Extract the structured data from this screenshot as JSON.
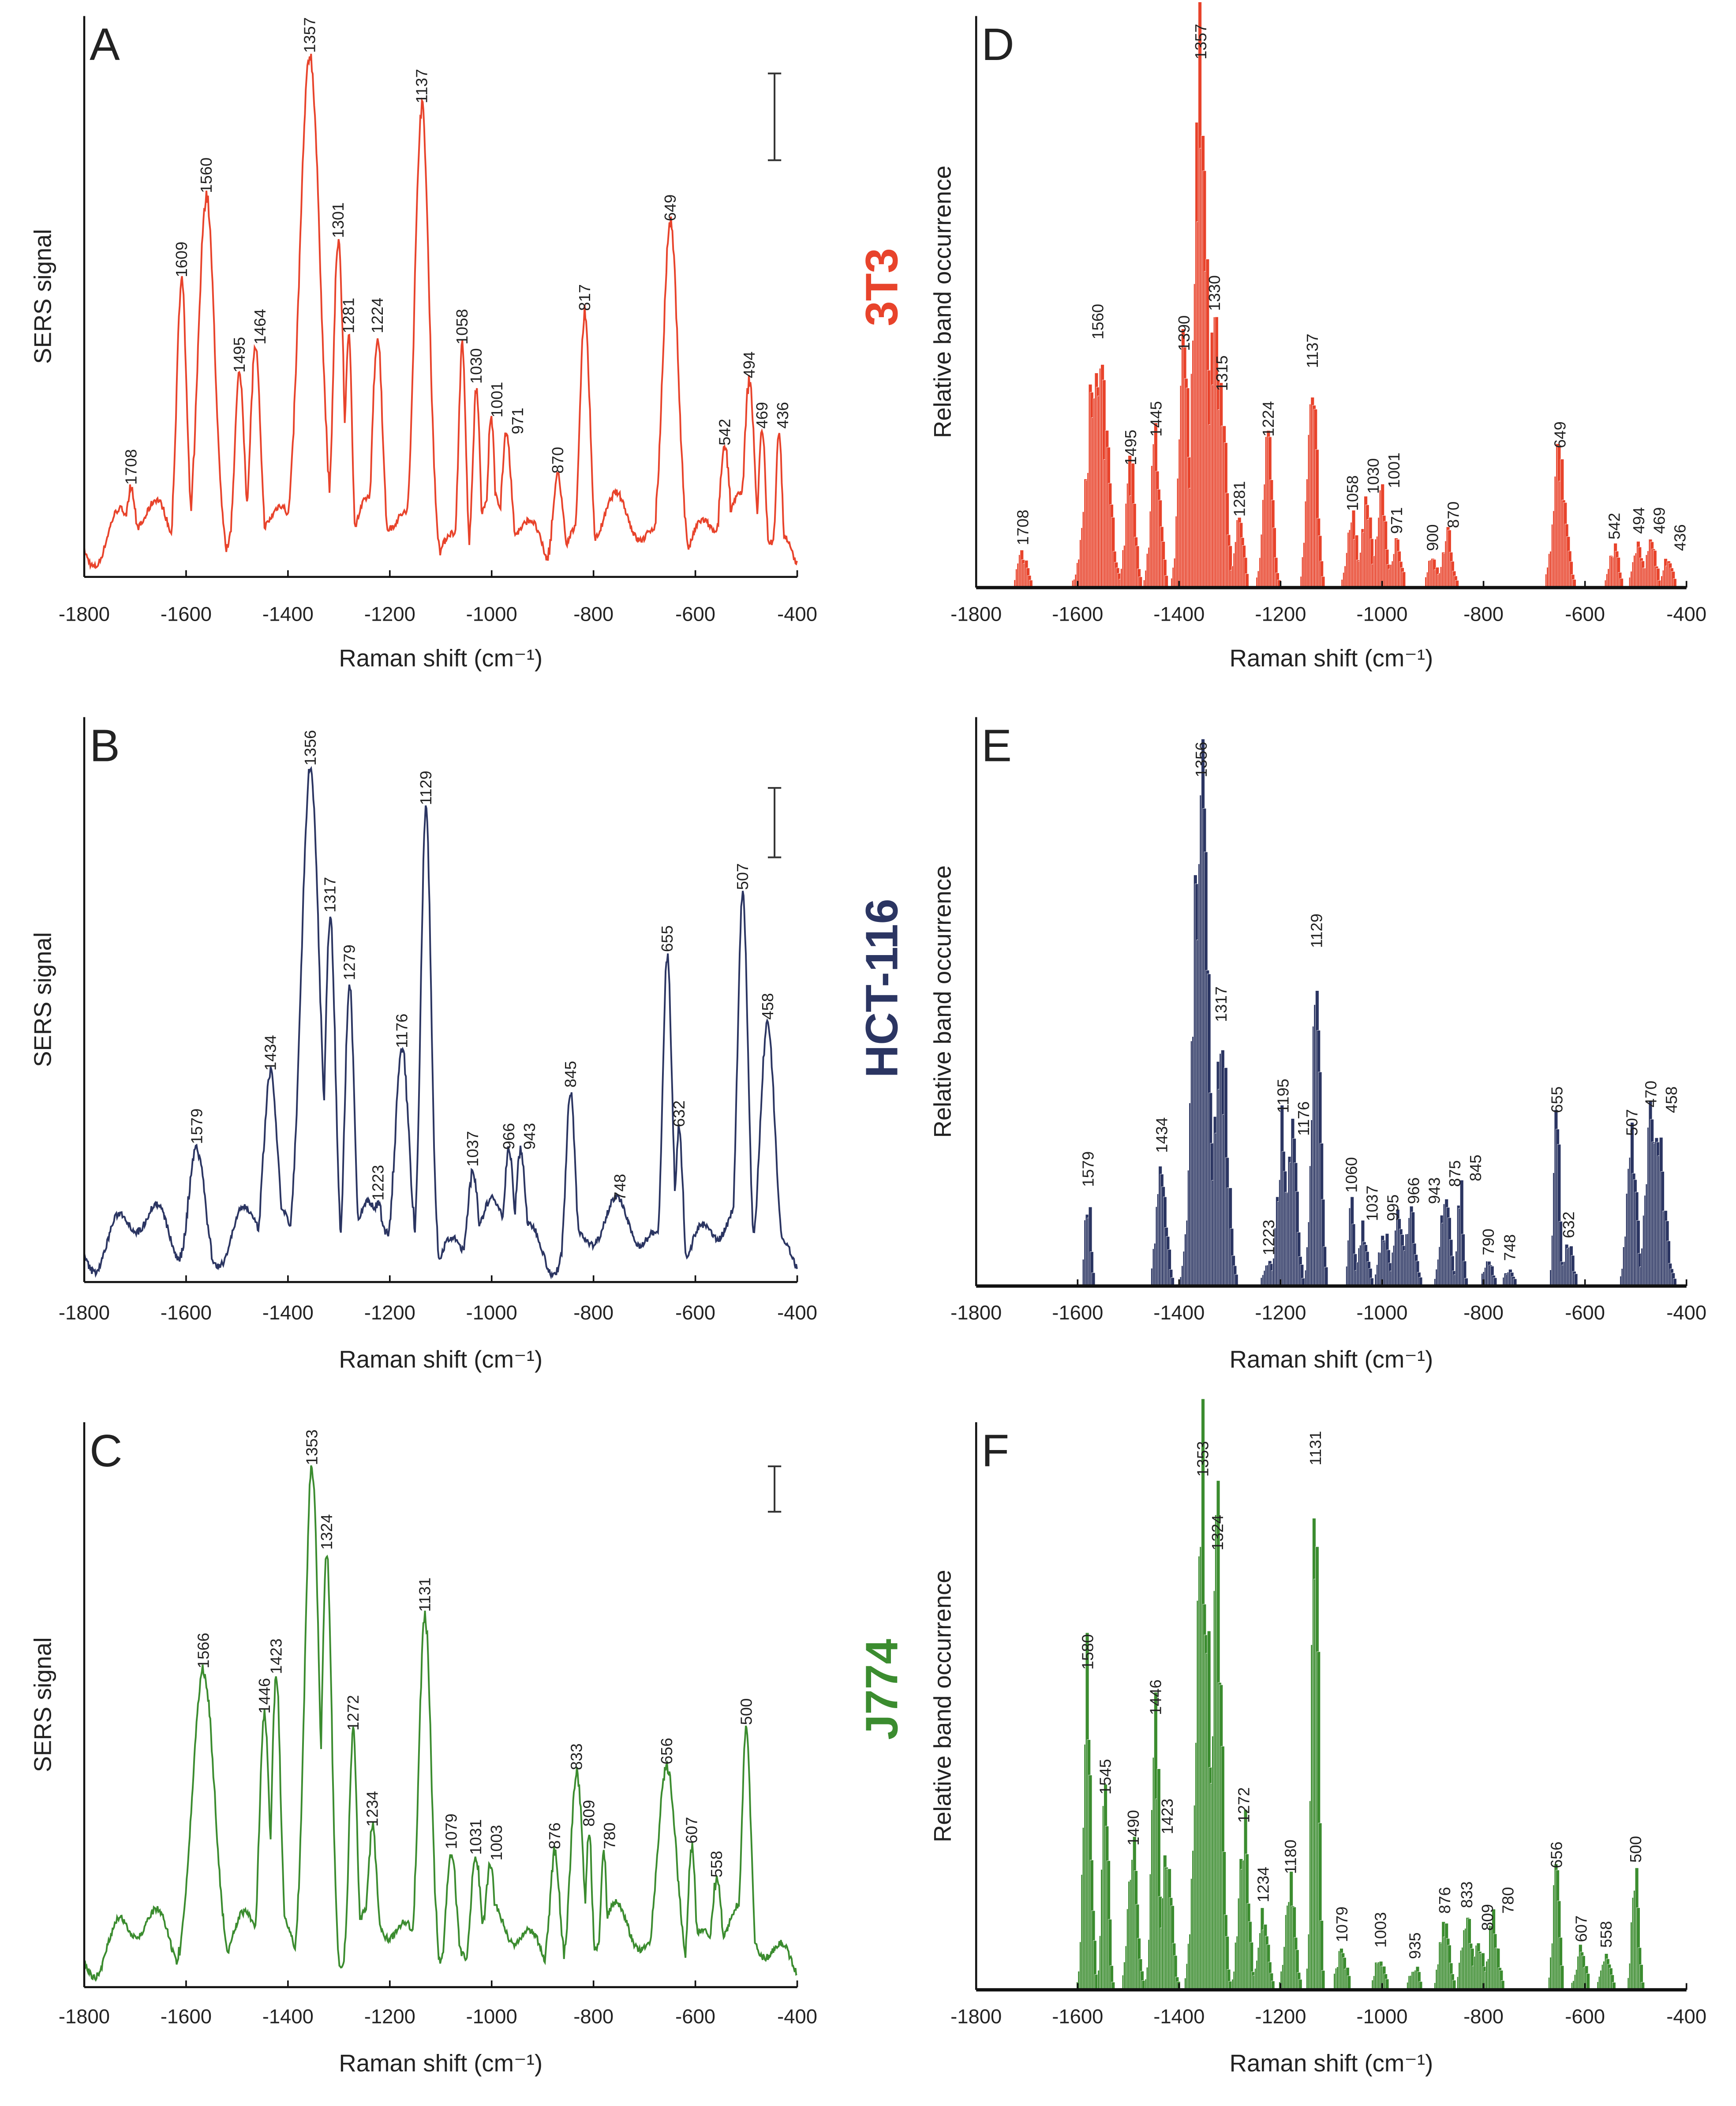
{
  "colors": {
    "3T3": "#e8432b",
    "HCT-116": "#2b3562",
    "J774": "#3b8c2f"
  },
  "chart_data": [
    {
      "panel": "A",
      "type": "line",
      "cell_line": "3T3",
      "color": "#e8432b",
      "ylabel": "SERS signal",
      "xlabel": "Raman shift (cm⁻¹)",
      "xlim": [
        -1800,
        -400
      ],
      "xticks": [
        "-1800",
        "-1600",
        "-1400",
        "-1200",
        "-1000",
        "-800",
        "-600",
        "-400"
      ],
      "y_units": "relative (0-1)",
      "peaks": [
        {
          "x": 1708,
          "y": 0.15
        },
        {
          "x": 1609,
          "y": 0.52
        },
        {
          "x": 1560,
          "y": 0.67,
          "w": 16
        },
        {
          "x": 1495,
          "y": 0.35
        },
        {
          "x": 1464,
          "y": 0.4
        },
        {
          "x": 1357,
          "y": 0.92,
          "w": 20
        },
        {
          "x": 1301,
          "y": 0.59
        },
        {
          "x": 1281,
          "y": 0.42,
          "w": 7
        },
        {
          "x": 1224,
          "y": 0.42
        },
        {
          "x": 1137,
          "y": 0.83,
          "w": 14
        },
        {
          "x": 1058,
          "y": 0.4,
          "w": 7
        },
        {
          "x": 1030,
          "y": 0.33,
          "w": 7
        },
        {
          "x": 1001,
          "y": 0.27,
          "w": 7
        },
        {
          "x": 971,
          "y": 0.24
        },
        {
          "x": 870,
          "y": 0.17
        },
        {
          "x": 817,
          "y": 0.46,
          "w": 10
        },
        {
          "x": 649,
          "y": 0.62,
          "w": 15
        },
        {
          "x": 542,
          "y": 0.22
        },
        {
          "x": 494,
          "y": 0.34
        },
        {
          "x": 469,
          "y": 0.25,
          "w": 7
        },
        {
          "x": 436,
          "y": 0.25,
          "w": 6
        }
      ]
    },
    {
      "panel": "B",
      "type": "line",
      "cell_line": "HCT-116",
      "color": "#2b3562",
      "ylabel": "SERS signal",
      "xlabel": "Raman shift (cm⁻¹)",
      "xlim": [
        -1800,
        -400
      ],
      "xticks": [
        "-1800",
        "-1600",
        "-1400",
        "-1200",
        "-1000",
        "-800",
        "-600",
        "-400"
      ],
      "y_units": "relative (0-1)",
      "peaks": [
        {
          "x": 1579,
          "y": 0.23,
          "w": 16
        },
        {
          "x": 1434,
          "y": 0.36,
          "w": 14
        },
        {
          "x": 1356,
          "y": 0.9,
          "w": 18
        },
        {
          "x": 1317,
          "y": 0.64
        },
        {
          "x": 1279,
          "y": 0.52,
          "w": 9
        },
        {
          "x": 1223,
          "y": 0.13
        },
        {
          "x": 1176,
          "y": 0.4,
          "w": 14
        },
        {
          "x": 1129,
          "y": 0.83,
          "w": 10
        },
        {
          "x": 1037,
          "y": 0.19
        },
        {
          "x": 966,
          "y": 0.22
        },
        {
          "x": 943,
          "y": 0.22
        },
        {
          "x": 845,
          "y": 0.33,
          "w": 9
        },
        {
          "x": 748,
          "y": 0.13
        },
        {
          "x": 655,
          "y": 0.57,
          "w": 9
        },
        {
          "x": 632,
          "y": 0.26,
          "w": 7
        },
        {
          "x": 507,
          "y": 0.68,
          "w": 10
        },
        {
          "x": 458,
          "y": 0.45,
          "w": 14
        }
      ]
    },
    {
      "panel": "C",
      "type": "line",
      "cell_line": "J774",
      "color": "#3b8c2f",
      "ylabel": "SERS signal",
      "xlabel": "Raman shift (cm⁻¹)",
      "xlim": [
        -1800,
        -400
      ],
      "xticks": [
        "-1800",
        "-1600",
        "-1400",
        "-1200",
        "-1000",
        "-800",
        "-600",
        "-400"
      ],
      "y_units": "relative (0-1)",
      "peaks": [
        {
          "x": 1566,
          "y": 0.55,
          "w": 22
        },
        {
          "x": 1446,
          "y": 0.47
        },
        {
          "x": 1423,
          "y": 0.54,
          "w": 9
        },
        {
          "x": 1353,
          "y": 0.91,
          "w": 14
        },
        {
          "x": 1324,
          "y": 0.76
        },
        {
          "x": 1272,
          "y": 0.44,
          "w": 8
        },
        {
          "x": 1234,
          "y": 0.27
        },
        {
          "x": 1131,
          "y": 0.65,
          "w": 12
        },
        {
          "x": 1079,
          "y": 0.23
        },
        {
          "x": 1031,
          "y": 0.22
        },
        {
          "x": 1003,
          "y": 0.21
        },
        {
          "x": 876,
          "y": 0.23
        },
        {
          "x": 833,
          "y": 0.37,
          "w": 12
        },
        {
          "x": 809,
          "y": 0.27,
          "w": 6
        },
        {
          "x": 780,
          "y": 0.23,
          "w": 6
        },
        {
          "x": 656,
          "y": 0.38,
          "w": 18
        },
        {
          "x": 607,
          "y": 0.24,
          "w": 7
        },
        {
          "x": 558,
          "y": 0.18
        },
        {
          "x": 500,
          "y": 0.45,
          "w": 9
        }
      ]
    },
    {
      "panel": "D",
      "type": "bar",
      "cell_line": "3T3",
      "color": "#e8432b",
      "ylabel": "Relative band occurrence",
      "xlabel": "Raman shift (cm⁻¹)",
      "xlim": [
        -1800,
        -400
      ],
      "xticks": [
        "-1800",
        "-1600",
        "-1400",
        "-1200",
        "-1000",
        "-800",
        "-600",
        "-400"
      ],
      "y_units": "relative (0-1)",
      "peaks": [
        {
          "x": 1708,
          "y": 0.06
        },
        {
          "x": 1560,
          "y": 0.42,
          "w": 18
        },
        {
          "x": 1495,
          "y": 0.2
        },
        {
          "x": 1445,
          "y": 0.25
        },
        {
          "x": 1390,
          "y": 0.4
        },
        {
          "x": 1357,
          "y": 0.91,
          "w": 12
        },
        {
          "x": 1330,
          "y": 0.47
        },
        {
          "x": 1315,
          "y": 0.33
        },
        {
          "x": 1281,
          "y": 0.11
        },
        {
          "x": 1224,
          "y": 0.25
        },
        {
          "x": 1137,
          "y": 0.37
        },
        {
          "x": 1058,
          "y": 0.12
        },
        {
          "x": 1030,
          "y": 0.15
        },
        {
          "x": 1001,
          "y": 0.16
        },
        {
          "x": 971,
          "y": 0.08
        },
        {
          "x": 900,
          "y": 0.05
        },
        {
          "x": 870,
          "y": 0.09
        },
        {
          "x": 649,
          "y": 0.23,
          "w": 12
        },
        {
          "x": 542,
          "y": 0.07
        },
        {
          "x": 494,
          "y": 0.08
        },
        {
          "x": 469,
          "y": 0.08
        },
        {
          "x": 436,
          "y": 0.05
        }
      ]
    },
    {
      "panel": "E",
      "type": "bar",
      "cell_line": "HCT-116",
      "color": "#2b3562",
      "ylabel": "Relative band occurrence",
      "xlabel": "Raman shift (cm⁻¹)",
      "xlim": [
        -1800,
        -400
      ],
      "xticks": [
        "-1800",
        "-1600",
        "-1400",
        "-1200",
        "-1000",
        "-800",
        "-600",
        "-400"
      ],
      "y_units": "relative (0-1)",
      "peaks": [
        {
          "x": 1579,
          "y": 0.16,
          "w": 5
        },
        {
          "x": 1434,
          "y": 0.22
        },
        {
          "x": 1356,
          "y": 0.88,
          "w": 14
        },
        {
          "x": 1317,
          "y": 0.45,
          "w": 12
        },
        {
          "x": 1223,
          "y": 0.04
        },
        {
          "x": 1195,
          "y": 0.29
        },
        {
          "x": 1176,
          "y": 0.25
        },
        {
          "x": 1129,
          "y": 0.58,
          "w": 8
        },
        {
          "x": 1060,
          "y": 0.15,
          "w": 5
        },
        {
          "x": 1037,
          "y": 0.1
        },
        {
          "x": 995,
          "y": 0.1
        },
        {
          "x": 966,
          "y": 0.13
        },
        {
          "x": 943,
          "y": 0.13
        },
        {
          "x": 875,
          "y": 0.16
        },
        {
          "x": 845,
          "y": 0.17,
          "w": 5
        },
        {
          "x": 790,
          "y": 0.04
        },
        {
          "x": 748,
          "y": 0.03
        },
        {
          "x": 655,
          "y": 0.29,
          "w": 5
        },
        {
          "x": 632,
          "y": 0.07
        },
        {
          "x": 507,
          "y": 0.25
        },
        {
          "x": 470,
          "y": 0.3
        },
        {
          "x": 458,
          "y": 0.29,
          "w": 14
        }
      ]
    },
    {
      "panel": "F",
      "type": "bar",
      "cell_line": "J774",
      "color": "#3b8c2f",
      "ylabel": "Relative band occurrence",
      "xlabel": "Raman shift (cm⁻¹)",
      "xlim": [
        -1800,
        -400
      ],
      "xticks": [
        "-1800",
        "-1600",
        "-1400",
        "-1200",
        "-1000",
        "-800",
        "-600",
        "-400"
      ],
      "y_units": "relative (0-1)",
      "peaks": [
        {
          "x": 1580,
          "y": 0.55,
          "w": 7
        },
        {
          "x": 1545,
          "y": 0.33,
          "w": 6
        },
        {
          "x": 1490,
          "y": 0.24
        },
        {
          "x": 1446,
          "y": 0.47,
          "w": 7
        },
        {
          "x": 1423,
          "y": 0.26
        },
        {
          "x": 1353,
          "y": 0.89,
          "w": 12
        },
        {
          "x": 1324,
          "y": 0.76
        },
        {
          "x": 1272,
          "y": 0.28
        },
        {
          "x": 1234,
          "y": 0.14
        },
        {
          "x": 1180,
          "y": 0.19
        },
        {
          "x": 1131,
          "y": 0.91,
          "w": 6
        },
        {
          "x": 1079,
          "y": 0.07
        },
        {
          "x": 1003,
          "y": 0.06
        },
        {
          "x": 935,
          "y": 0.04
        },
        {
          "x": 876,
          "y": 0.12
        },
        {
          "x": 833,
          "y": 0.13
        },
        {
          "x": 809,
          "y": 0.09
        },
        {
          "x": 780,
          "y": 0.12
        },
        {
          "x": 656,
          "y": 0.2,
          "w": 6
        },
        {
          "x": 607,
          "y": 0.07
        },
        {
          "x": 558,
          "y": 0.06
        },
        {
          "x": 500,
          "y": 0.21,
          "w": 6
        }
      ]
    }
  ]
}
